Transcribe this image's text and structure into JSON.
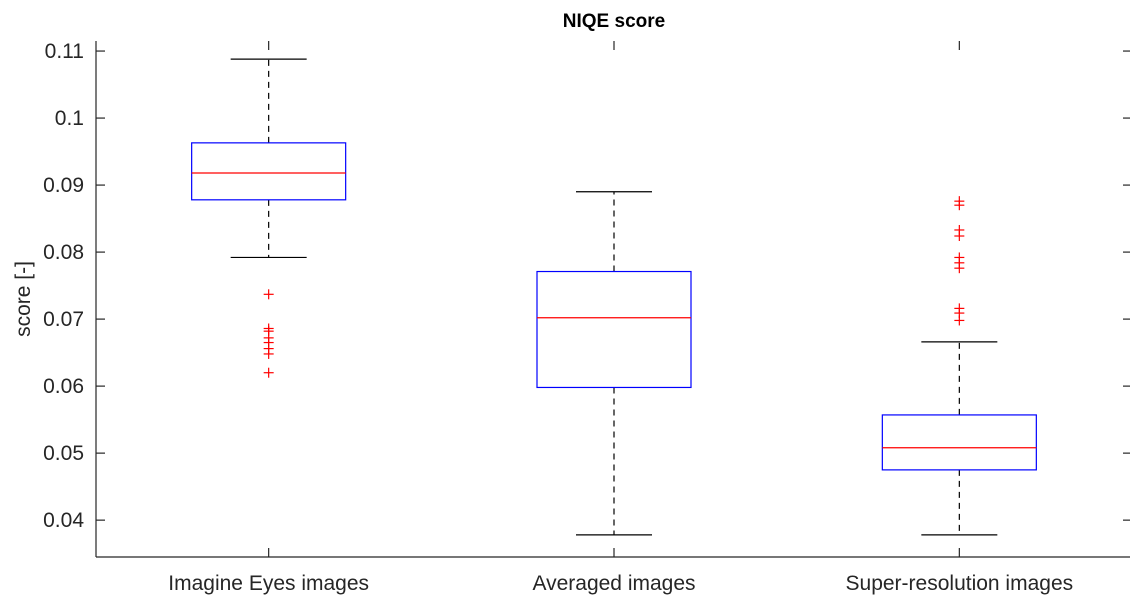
{
  "chart_data": {
    "type": "box",
    "title": "NIQE score",
    "xlabel": "",
    "ylabel": "score [-]",
    "ylim": [
      0.0345,
      0.1115
    ],
    "yticks": [
      "0.04",
      "0.05",
      "0.06",
      "0.07",
      "0.08",
      "0.09",
      "0.1",
      "0.11"
    ],
    "ytick_values": [
      0.04,
      0.05,
      0.06,
      0.07,
      0.08,
      0.09,
      0.1,
      0.11
    ],
    "grid": false,
    "colors": {
      "box": "#0000ff",
      "median": "#ff0000",
      "whisker": "#000000",
      "outlier": "#ff0000"
    },
    "categories": [
      "Imagine Eyes images",
      "Averaged images",
      "Super-resolution images"
    ],
    "boxes": [
      {
        "category": "Imagine Eyes images",
        "whisker_low": 0.0792,
        "q1": 0.0878,
        "median": 0.0918,
        "q3": 0.0963,
        "whisker_high": 0.1088,
        "outliers": [
          0.0737,
          0.0686,
          0.0682,
          0.0672,
          0.0665,
          0.0656,
          0.0648,
          0.062
        ]
      },
      {
        "category": "Averaged images",
        "whisker_low": 0.0378,
        "q1": 0.0598,
        "median": 0.0702,
        "q3": 0.0771,
        "whisker_high": 0.089,
        "outliers": []
      },
      {
        "category": "Super-resolution images",
        "whisker_low": 0.0378,
        "q1": 0.0475,
        "median": 0.0508,
        "q3": 0.0557,
        "whisker_high": 0.0666,
        "outliers": [
          0.0876,
          0.087,
          0.0833,
          0.0824,
          0.0792,
          0.0784,
          0.0776,
          0.0716,
          0.0709,
          0.0698
        ]
      }
    ]
  }
}
